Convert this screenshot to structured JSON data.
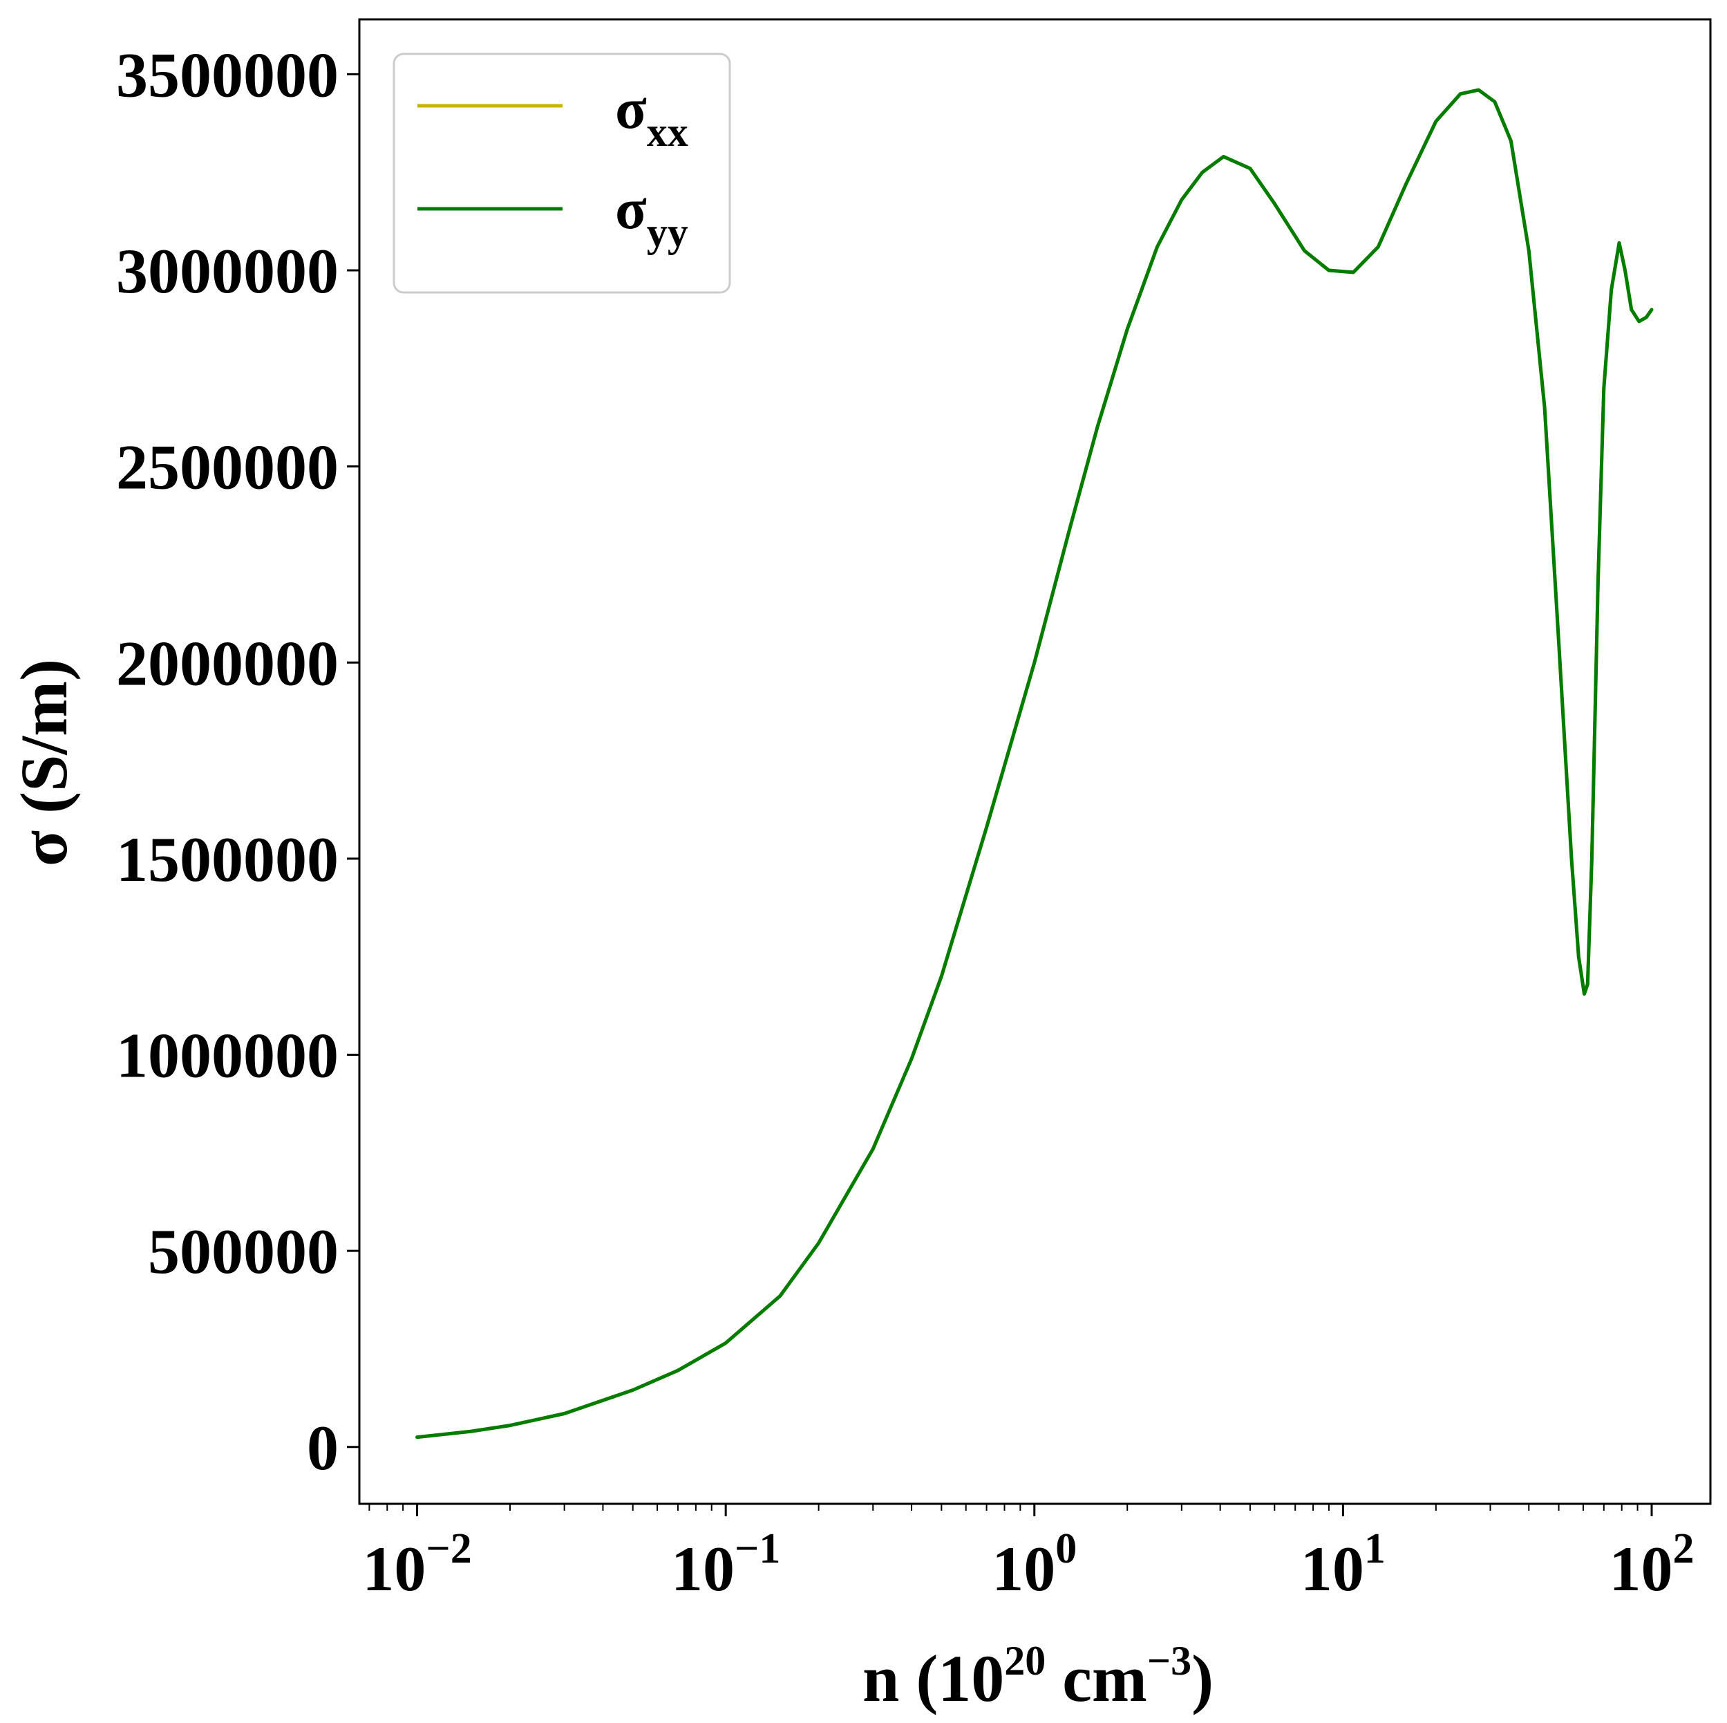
{
  "chart_data": {
    "type": "line",
    "xlabel": "n (10^20 cm^-3)",
    "xlabel_parts": {
      "pre": "n (10",
      "exp1": "20",
      "mid": " cm",
      "exp2": "−3",
      "post": ")"
    },
    "ylabel": "σ (S/m)",
    "x_scale": "log",
    "xlim": [
      0.0065,
      155
    ],
    "ylim": [
      -145000,
      3640000
    ],
    "x_ticks": [
      {
        "value": 0.01,
        "base": "10",
        "exp": "−2"
      },
      {
        "value": 0.1,
        "base": "10",
        "exp": "−1"
      },
      {
        "value": 1,
        "base": "10",
        "exp": "0"
      },
      {
        "value": 10,
        "base": "10",
        "exp": "1"
      },
      {
        "value": 100,
        "base": "10",
        "exp": "2"
      }
    ],
    "y_ticks": [
      {
        "value": 0,
        "label": "0"
      },
      {
        "value": 500000,
        "label": "500000"
      },
      {
        "value": 1000000,
        "label": "1000000"
      },
      {
        "value": 1500000,
        "label": "1500000"
      },
      {
        "value": 2000000,
        "label": "2000000"
      },
      {
        "value": 2500000,
        "label": "2500000"
      },
      {
        "value": 3000000,
        "label": "3000000"
      },
      {
        "value": 3500000,
        "label": "3500000"
      }
    ],
    "grid": false,
    "legend_position": "top-left",
    "series": [
      {
        "name": "σxx",
        "name_base": "σ",
        "name_sub": "xx",
        "color": "#c8b400",
        "x": [
          0.01,
          0.015,
          0.02,
          0.03,
          0.05,
          0.07,
          0.1,
          0.15,
          0.2,
          0.3,
          0.4,
          0.5,
          0.7,
          1.0,
          1.3,
          1.6,
          2.0,
          2.5,
          3.0,
          3.5,
          4.1,
          5.0,
          6.0,
          7.5,
          9.0,
          10.8,
          13.0,
          16.0,
          20.0,
          24.0,
          27.5,
          31.0,
          35.0,
          40.0,
          45.0,
          50.0,
          55.0,
          58.0,
          60.5,
          62.0,
          64.0,
          67.0,
          70.0,
          74.0,
          78.5,
          82.0,
          86.0,
          91.0,
          96.0,
          100.0
        ],
        "y": [
          25000,
          40000,
          55000,
          85000,
          145000,
          195000,
          265000,
          385000,
          520000,
          760000,
          990000,
          1200000,
          1580000,
          2000000,
          2340000,
          2600000,
          2850000,
          3060000,
          3180000,
          3250000,
          3290000,
          3260000,
          3170000,
          3050000,
          3000000,
          2995000,
          3060000,
          3220000,
          3380000,
          3450000,
          3460000,
          3430000,
          3330000,
          3050000,
          2650000,
          2050000,
          1500000,
          1250000,
          1155000,
          1180000,
          1500000,
          2200000,
          2700000,
          2950000,
          3070000,
          3000000,
          2900000,
          2870000,
          2880000,
          2900000
        ]
      },
      {
        "name": "σyy",
        "name_base": "σ",
        "name_sub": "yy",
        "color": "#007d00",
        "x": [
          0.01,
          0.015,
          0.02,
          0.03,
          0.05,
          0.07,
          0.1,
          0.15,
          0.2,
          0.3,
          0.4,
          0.5,
          0.7,
          1.0,
          1.3,
          1.6,
          2.0,
          2.5,
          3.0,
          3.5,
          4.1,
          5.0,
          6.0,
          7.5,
          9.0,
          10.8,
          13.0,
          16.0,
          20.0,
          24.0,
          27.5,
          31.0,
          35.0,
          40.0,
          45.0,
          50.0,
          55.0,
          58.0,
          60.5,
          62.0,
          64.0,
          67.0,
          70.0,
          74.0,
          78.5,
          82.0,
          86.0,
          91.0,
          96.0,
          100.0
        ],
        "y": [
          25000,
          40000,
          55000,
          85000,
          145000,
          195000,
          265000,
          385000,
          520000,
          760000,
          990000,
          1200000,
          1580000,
          2000000,
          2340000,
          2600000,
          2850000,
          3060000,
          3180000,
          3250000,
          3290000,
          3260000,
          3170000,
          3050000,
          3000000,
          2995000,
          3060000,
          3220000,
          3380000,
          3450000,
          3460000,
          3430000,
          3330000,
          3050000,
          2650000,
          2050000,
          1500000,
          1250000,
          1155000,
          1180000,
          1500000,
          2200000,
          2700000,
          2950000,
          3070000,
          3000000,
          2900000,
          2870000,
          2880000,
          2900000
        ]
      }
    ]
  }
}
